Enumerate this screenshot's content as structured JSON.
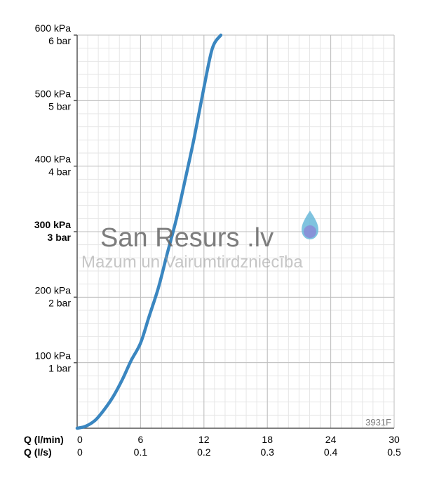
{
  "chart_data": {
    "type": "line",
    "x_axis_primary": {
      "label": "Q (l/min)",
      "ticks": [
        0,
        6,
        12,
        18,
        24,
        30
      ]
    },
    "x_axis_secondary": {
      "label": "Q (l/s)",
      "ticks": [
        "0",
        "0.1",
        "0.2",
        "0.3",
        "0.4",
        "0.5"
      ]
    },
    "y_ticks": [
      {
        "value": 100,
        "kpa": "100 kPa",
        "bar": "1 bar",
        "bold": false
      },
      {
        "value": 200,
        "kpa": "200 kPa",
        "bar": "2 bar",
        "bold": false
      },
      {
        "value": 300,
        "kpa": "300 kPa",
        "bar": "3 bar",
        "bold": true
      },
      {
        "value": 400,
        "kpa": "400 kPa",
        "bar": "4 bar",
        "bold": false
      },
      {
        "value": 500,
        "kpa": "500 kPa",
        "bar": "5 bar",
        "bold": false
      },
      {
        "value": 600,
        "kpa": "600 kPa",
        "bar": "6 bar",
        "bold": false
      }
    ],
    "xlim": [
      0,
      30
    ],
    "ylim": [
      0,
      600
    ],
    "grid": true,
    "series": [
      {
        "color": "#3a86c0",
        "x": [
          0,
          0.8,
          1.7,
          2.5,
          3.4,
          4.3,
          5.1,
          6.0,
          6.8,
          7.7,
          8.5,
          9.4,
          10.3,
          11.1,
          12.0,
          12.8,
          13.6
        ],
        "y": [
          0,
          3,
          12,
          27,
          48,
          75,
          103,
          130,
          170,
          215,
          265,
          320,
          385,
          445,
          520,
          580,
          600
        ]
      }
    ],
    "code_label": "3931F"
  },
  "watermark": {
    "title": "San Resurs .lv",
    "subtitle": "Mazum un Vairumtirdzniecība",
    "drop_icon": "water-drop-icon"
  }
}
